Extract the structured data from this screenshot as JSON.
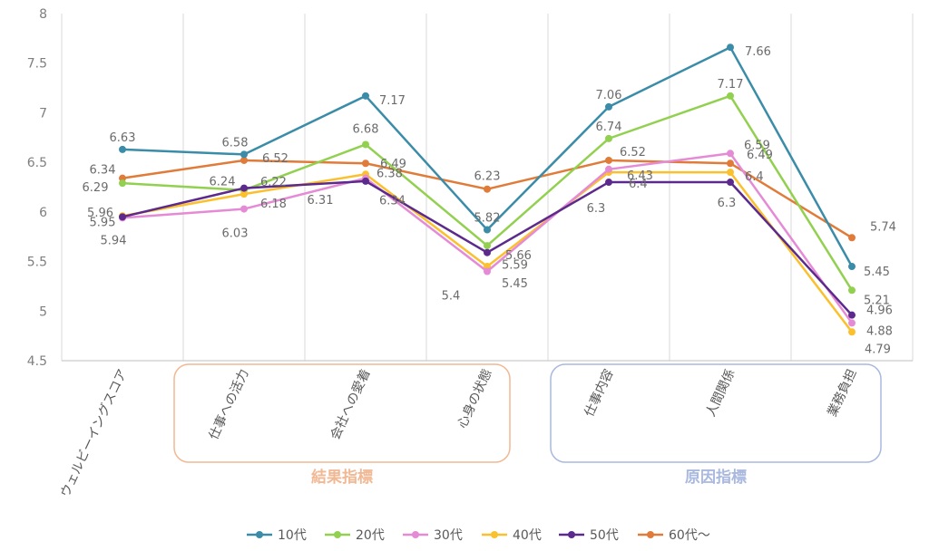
{
  "chart_data": {
    "type": "line",
    "categories": [
      "ウェルビーイングスコア",
      "仕事への活力",
      "会社への愛着",
      "心身の状態",
      "仕事内容",
      "人間関係",
      "業務負担"
    ],
    "ylim": [
      4.5,
      8
    ],
    "yticks": [
      "4.5",
      "5",
      "5.5",
      "6",
      "6.5",
      "7",
      "7.5",
      "8"
    ],
    "series": [
      {
        "name": "10代",
        "color": "#3a8ca8",
        "values": [
          6.63,
          6.58,
          7.17,
          5.82,
          7.06,
          7.66,
          5.45
        ]
      },
      {
        "name": "20代",
        "color": "#92d050",
        "values": [
          6.29,
          6.22,
          6.68,
          5.66,
          6.74,
          7.17,
          5.21
        ]
      },
      {
        "name": "30代",
        "color": "#e58bd6",
        "values": [
          5.94,
          6.03,
          6.34,
          5.4,
          6.43,
          6.59,
          4.88
        ]
      },
      {
        "name": "40代",
        "color": "#fbc02d",
        "values": [
          5.96,
          6.18,
          6.38,
          5.45,
          6.4,
          6.4,
          4.79
        ]
      },
      {
        "name": "50代",
        "color": "#5b2a8c",
        "values": [
          5.95,
          6.24,
          6.31,
          5.59,
          6.3,
          6.3,
          4.96
        ]
      },
      {
        "name": "60代～",
        "color": "#e07b39",
        "values": [
          6.34,
          6.52,
          6.49,
          6.23,
          6.52,
          6.49,
          5.74
        ]
      }
    ],
    "groups": [
      {
        "label": "結果指標",
        "color": "#f1b894"
      },
      {
        "label": "原因指標",
        "color": "#a9b8de"
      }
    ]
  }
}
